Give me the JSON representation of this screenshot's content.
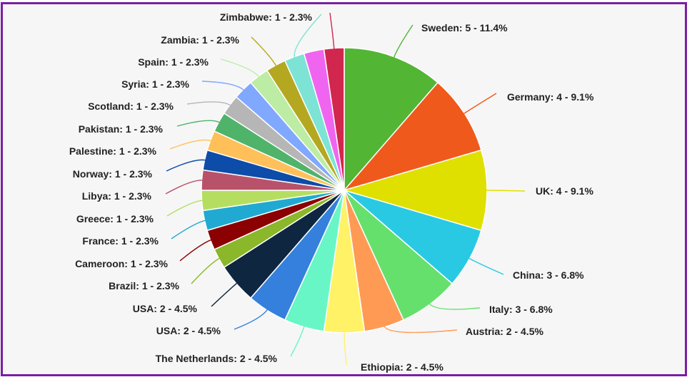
{
  "chart_data": {
    "type": "pie",
    "title": "",
    "slices": [
      {
        "label": "Sweden: 5 - 11.4%",
        "name": "Sweden",
        "value": 5,
        "percent": 11.4,
        "color": "#52b534"
      },
      {
        "label": "Germany: 4 - 9.1%",
        "name": "Germany",
        "value": 4,
        "percent": 9.1,
        "color": "#ef5a1c"
      },
      {
        "label": "UK: 4 - 9.1%",
        "name": "UK",
        "value": 4,
        "percent": 9.1,
        "color": "#dfe000"
      },
      {
        "label": "China: 3 - 6.8%",
        "name": "China",
        "value": 3,
        "percent": 6.8,
        "color": "#29c9e4"
      },
      {
        "label": "Italy: 3 - 6.8%",
        "name": "Italy",
        "value": 3,
        "percent": 6.8,
        "color": "#66e06d"
      },
      {
        "label": "Austria: 2 - 4.5%",
        "name": "Austria",
        "value": 2,
        "percent": 4.5,
        "color": "#ff9a55"
      },
      {
        "label": "Ethiopia: 2 - 4.5%",
        "name": "Ethiopia",
        "value": 2,
        "percent": 4.5,
        "color": "#fff267"
      },
      {
        "label": "The Netherlands: 2 - 4.5%",
        "name": "The Netherlands",
        "value": 2,
        "percent": 4.5,
        "color": "#69f6c6"
      },
      {
        "label": "USA: 2 - 4.5%",
        "name": "USA",
        "value": 2,
        "percent": 4.5,
        "color": "#3480dc"
      },
      {
        "label": "USA: 2 - 4.5%",
        "name": "USA",
        "value": 2,
        "percent": 4.5,
        "color": "#0f2640"
      },
      {
        "label": "Brazil: 1 - 2.3%",
        "name": "Brazil",
        "value": 1,
        "percent": 2.3,
        "color": "#8bb72a"
      },
      {
        "label": "Cameroon: 1 - 2.3%",
        "name": "Cameroon",
        "value": 1,
        "percent": 2.3,
        "color": "#8b0000"
      },
      {
        "label": "France: 1 - 2.3%",
        "name": "France",
        "value": 1,
        "percent": 2.3,
        "color": "#20aad1"
      },
      {
        "label": "Greece: 1 - 2.3%",
        "name": "Greece",
        "value": 1,
        "percent": 2.3,
        "color": "#b5de61"
      },
      {
        "label": "Libya: 1 - 2.3%",
        "name": "Libya",
        "value": 1,
        "percent": 2.3,
        "color": "#b8526a"
      },
      {
        "label": "Norway: 1 - 2.3%",
        "name": "Norway",
        "value": 1,
        "percent": 2.3,
        "color": "#0d4ca8"
      },
      {
        "label": "Palestine: 1 - 2.3%",
        "name": "Palestine",
        "value": 1,
        "percent": 2.3,
        "color": "#ffc05a"
      },
      {
        "label": "Pakistan: 1 - 2.3%",
        "name": "Pakistan",
        "value": 1,
        "percent": 2.3,
        "color": "#4fb36a"
      },
      {
        "label": "Scotland: 1 - 2.3%",
        "name": "Scotland",
        "value": 1,
        "percent": 2.3,
        "color": "#b6b6b6"
      },
      {
        "label": "Syria: 1 - 2.3%",
        "name": "Syria",
        "value": 1,
        "percent": 2.3,
        "color": "#80a8ff"
      },
      {
        "label": "Spain: 1 - 2.3%",
        "name": "Spain",
        "value": 1,
        "percent": 2.3,
        "color": "#bdeca4"
      },
      {
        "label": "Zambia: 1 - 2.3%",
        "name": "Zambia",
        "value": 1,
        "percent": 2.3,
        "color": "#b4a821"
      },
      {
        "label": "Zimbabwe: 1 - 2.3%",
        "name": "Zimbabwe",
        "value": 1,
        "percent": 2.3,
        "color": "#7de3d5"
      },
      {
        "label": "",
        "name": "",
        "value": 1,
        "percent": 2.3,
        "color": "#f065ef"
      },
      {
        "label": "",
        "name": "",
        "value": 1,
        "percent": 2.3,
        "color": "#d1274f"
      }
    ],
    "legend": "none",
    "frame_color": "#7b1fa2"
  }
}
